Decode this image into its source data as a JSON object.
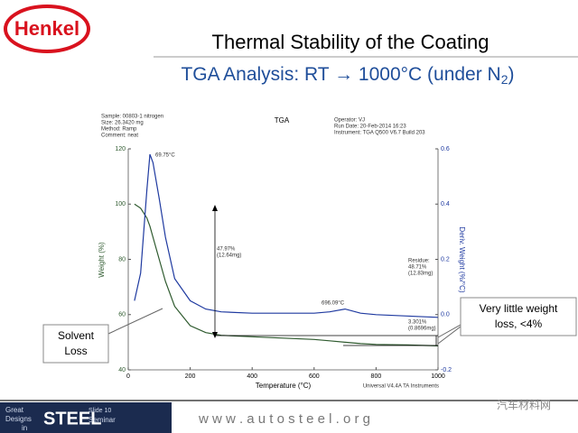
{
  "logo": "Henkel",
  "slide": {
    "title": "Thermal Stability of the Coating",
    "subtitle": [
      "TGA Analysis:  RT → 1000°C (under N",
      "2",
      ")"
    ]
  },
  "chart_data": {
    "type": "line",
    "title": "TGA",
    "info_left": [
      "Sample: 00803-1 nitrogen",
      "Size: 26.3420 mg",
      "Method: Ramp",
      "Comment: neat"
    ],
    "info_right": [
      "Operator: VJ",
      "Run Date: 20-Feb-2014 16:23",
      "Instrument: TGA Q500 V6.7 Build 203"
    ],
    "x_label": "Temperature (°C)",
    "y_label": "Weight (%)",
    "y2_label": "Deriv. Weight (%/°C)",
    "footnote": "Universal V4.4A TA Instruments",
    "x": [
      20,
      40,
      60,
      70,
      80,
      100,
      120,
      150,
      200,
      250,
      300,
      400,
      500,
      600,
      650,
      700,
      750,
      800,
      900,
      1000
    ],
    "series": [
      {
        "color": "#2e5a2e",
        "values": [
          100,
          98.5,
          95,
          92,
          88,
          80,
          72,
          63,
          56,
          53.5,
          52.5,
          52,
          51.5,
          51,
          50.5,
          50,
          49.5,
          49.2,
          49,
          48.7
        ]
      },
      {
        "color": "#1f3aa0",
        "axis": "y2",
        "values": [
          0.05,
          0.15,
          0.45,
          0.58,
          0.55,
          0.42,
          0.28,
          0.13,
          0.05,
          0.02,
          0.01,
          0.005,
          0.005,
          0.005,
          0.01,
          0.02,
          0.005,
          0,
          -0.005,
          -0.01
        ]
      }
    ],
    "xlim": [
      0,
      1000
    ],
    "xticks": [
      0,
      200,
      400,
      600,
      800,
      1000
    ],
    "ylim": [
      40,
      120
    ],
    "yticks": [
      40,
      60,
      80,
      100,
      120
    ],
    "y2lim": [
      -0.2,
      0.6
    ],
    "y2ticks": [
      -0.2,
      {
        "value": 0,
        "label": "0.0"
      },
      0.2,
      0.4,
      0.6
    ],
    "annotations": {
      "peak": [
        "69.75°C"
      ],
      "loss": [
        "47.97%",
        "(12.64mg)"
      ],
      "residue": [
        "Residue:",
        "48.71%",
        "(12.83mg)"
      ],
      "bump": [
        "696.09°C"
      ],
      "late_loss": [
        "3.301%",
        "(0.8696mg)"
      ]
    }
  },
  "callouts": {
    "left": [
      "Solvent",
      "Loss"
    ],
    "right": [
      "Very little weight",
      "loss, <4%"
    ]
  },
  "footer": {
    "seminar": [
      "Great",
      "Designs",
      "in",
      "STEEL",
      "Seminar"
    ],
    "slide": "Slide 10",
    "url": "w w w . a u t o s t e e l . o r g",
    "watermark": "汽车材料网"
  }
}
